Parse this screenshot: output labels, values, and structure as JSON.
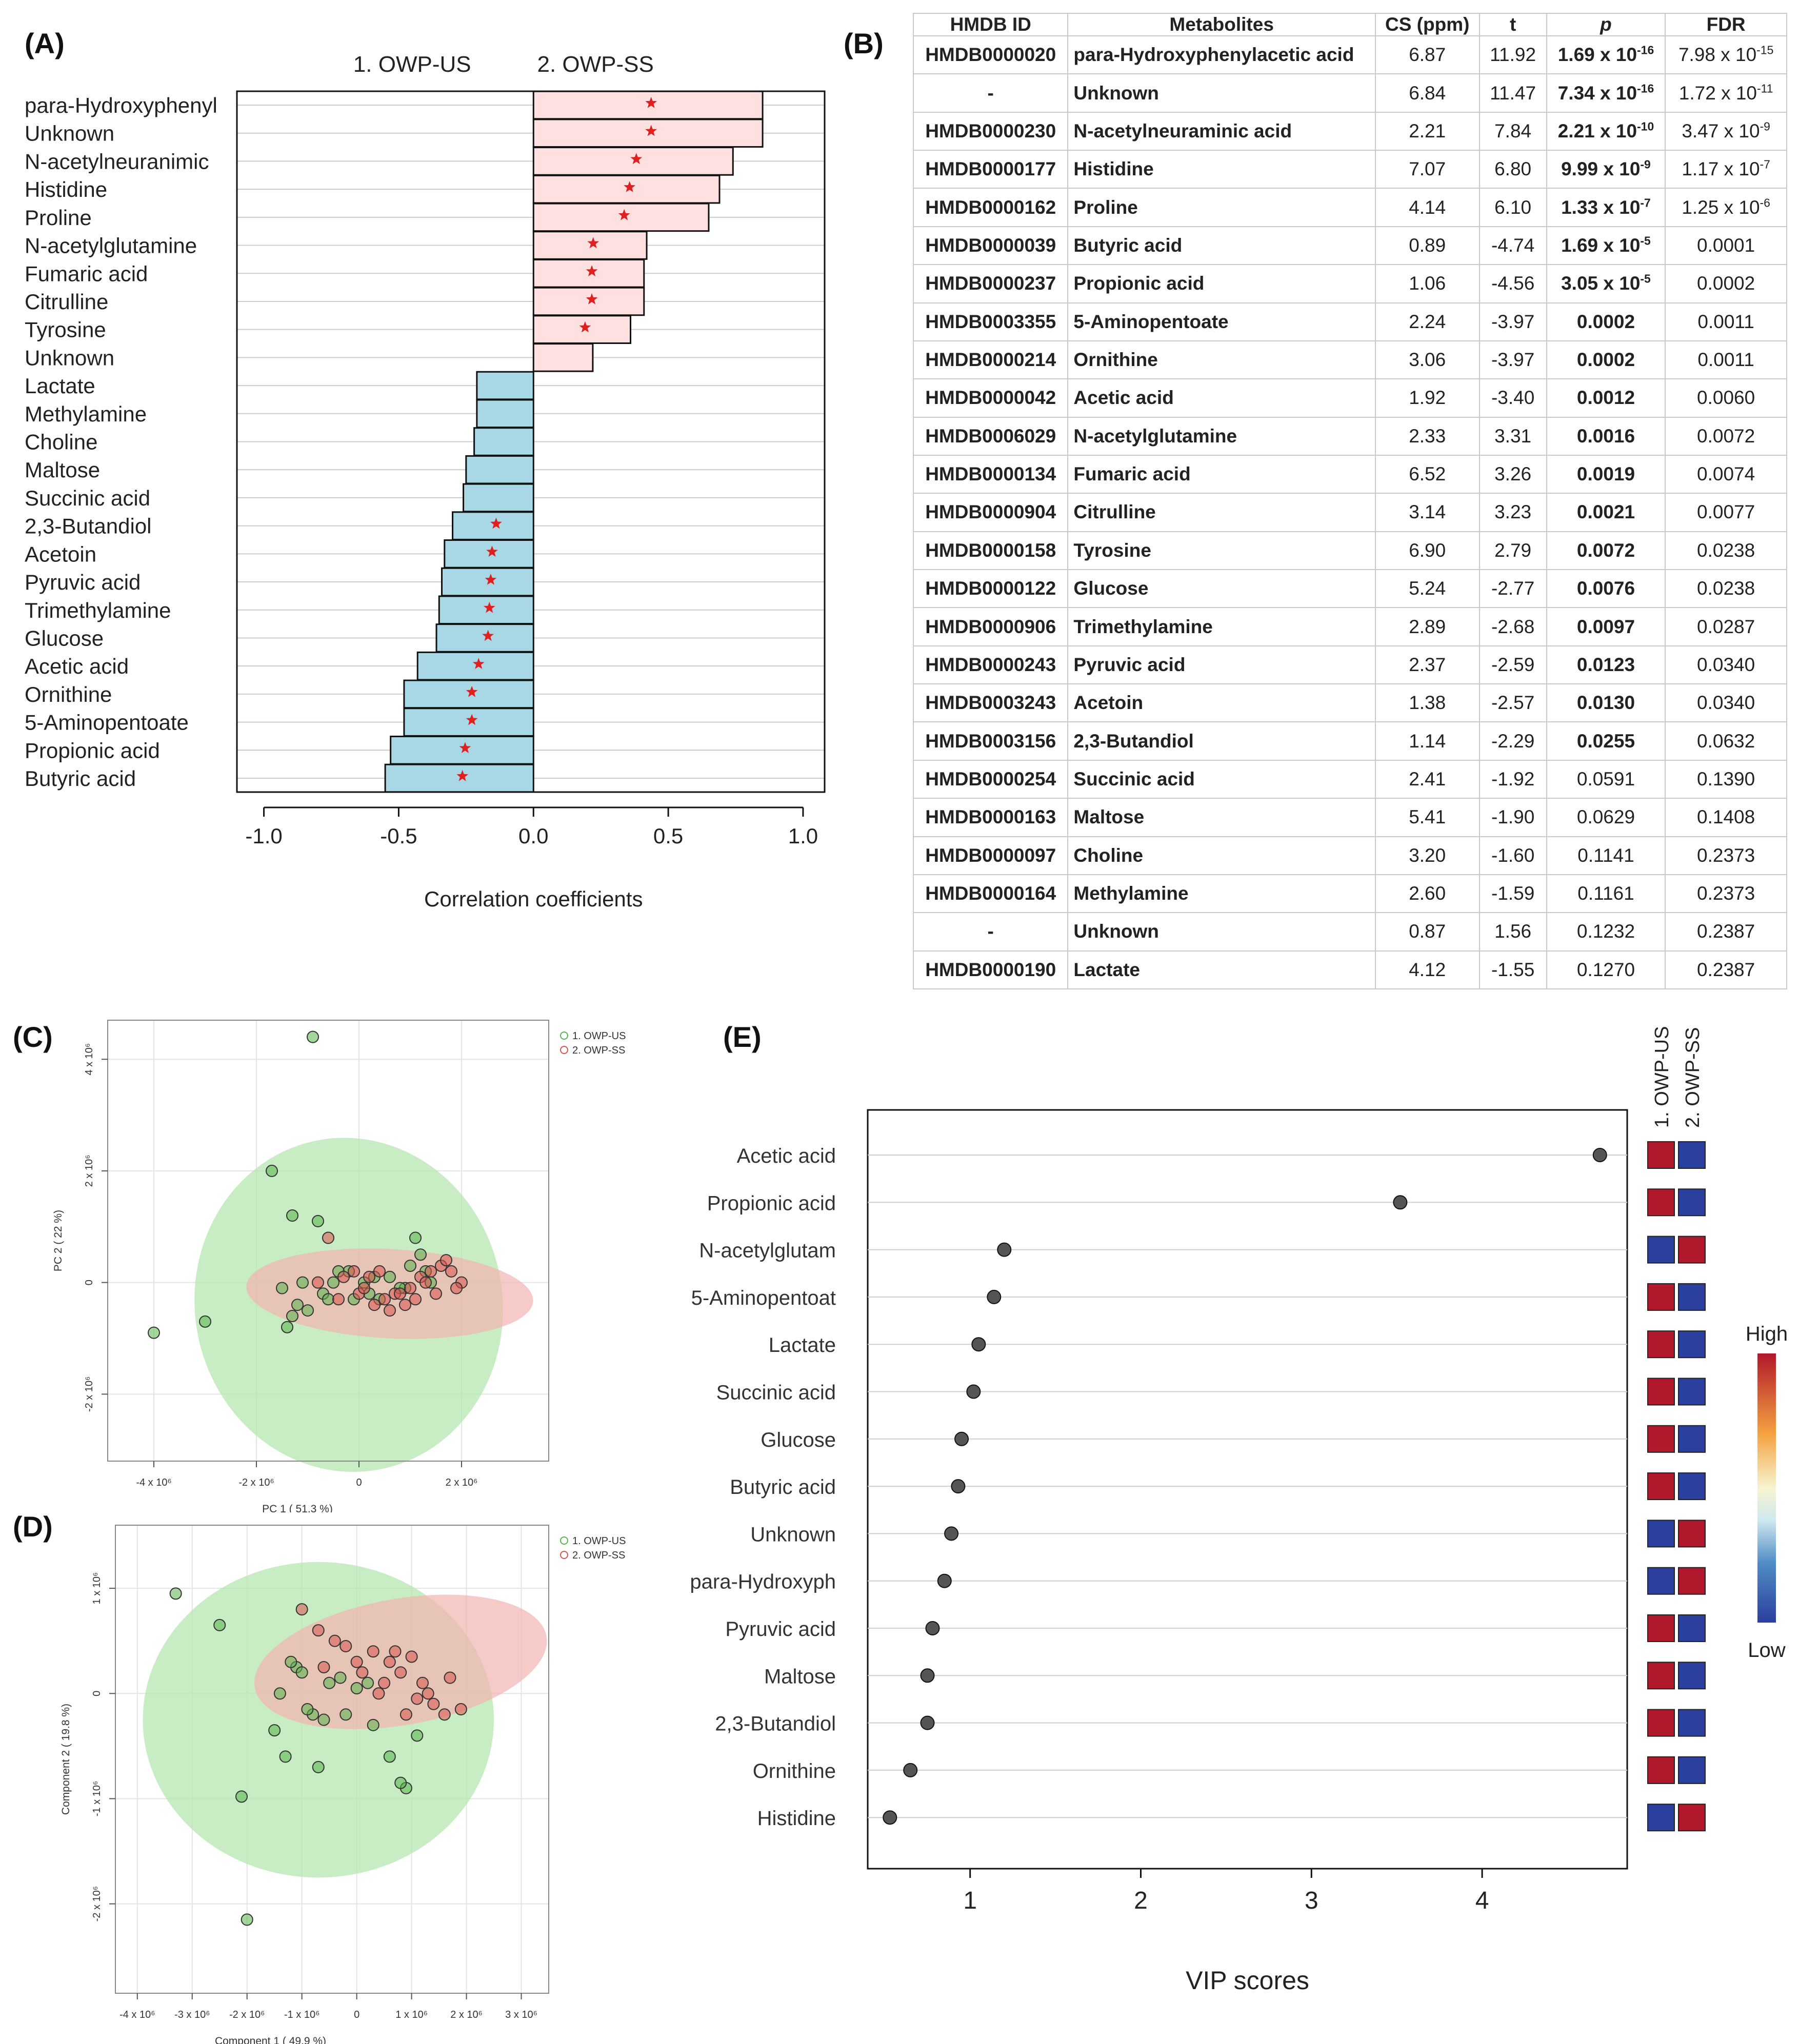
{
  "panel_labels": {
    "a": "(A)",
    "b": "(B)",
    "c": "(C)",
    "d": "(D)",
    "e": "(E)"
  },
  "colors": {
    "positive_bar": "#fde0df",
    "negative_bar": "#a8d8e6",
    "star": "#e02020",
    "us_group": "#55b548",
    "ss_group": "#d9534f",
    "us_ellipse": "#b6e6b0",
    "ss_ellipse": "#f2b3b0",
    "heat_high": "#b2182b",
    "heat_low": "#2b3f9e",
    "vip_dot": "#555555"
  },
  "chart_data": [
    {
      "id": "A",
      "type": "bar",
      "orientation": "horizontal",
      "group_labels": [
        "1. OWP-US",
        "2. OWP-SS"
      ],
      "categories": [
        "para-Hydroxyphenyl",
        "Unknown",
        "N-acetylneuranimic",
        "Histidine",
        "Proline",
        "N-acetylglutamine",
        "Fumaric acid",
        "Citrulline",
        "Tyrosine",
        "Unknown",
        "Lactate",
        "Methylamine",
        "Choline",
        "Maltose",
        "Succinic acid",
        "2,3-Butandiol",
        "Acetoin",
        "Pyruvic acid",
        "Trimethylamine",
        "Glucose",
        "Acetic acid",
        "Ornithine",
        "5-Aminopentoate",
        "Propionic acid",
        "Butyric acid"
      ],
      "values": [
        0.85,
        0.85,
        0.74,
        0.69,
        0.65,
        0.42,
        0.41,
        0.41,
        0.36,
        0.22,
        -0.21,
        -0.21,
        -0.22,
        -0.25,
        -0.26,
        -0.3,
        -0.33,
        -0.34,
        -0.35,
        -0.36,
        -0.43,
        -0.48,
        -0.48,
        -0.53,
        -0.55
      ],
      "significant": [
        true,
        true,
        true,
        true,
        true,
        true,
        true,
        true,
        true,
        false,
        false,
        false,
        false,
        false,
        false,
        true,
        true,
        true,
        true,
        true,
        true,
        true,
        true,
        true,
        true
      ],
      "xlabel": "Correlation coefficients",
      "xlim": [
        -1.1,
        1.08
      ],
      "xticks": [
        -1.0,
        -0.5,
        0.0,
        0.5,
        1.0
      ],
      "xtick_labels": [
        "-1.0",
        "-0.5",
        "0.0",
        "0.5",
        "1.0"
      ],
      "grid": true
    },
    {
      "id": "B",
      "type": "table",
      "columns": [
        "HMDB ID",
        "Metabolites",
        "CS (ppm)",
        "t",
        "p",
        "FDR"
      ],
      "rows": [
        {
          "id": "HMDB0000020",
          "name": "para-Hydroxyphenylacetic acid",
          "cs": "6.87",
          "t": "11.92",
          "p": "1.69 x 10",
          "p_exp": "-16",
          "fdr": "7.98 x 10",
          "fdr_exp": "-15",
          "bold": true
        },
        {
          "id": "-",
          "name": "Unknown",
          "cs": "6.84",
          "t": "11.47",
          "p": "7.34 x 10",
          "p_exp": "-16",
          "fdr": "1.72 x 10",
          "fdr_exp": "-11",
          "bold": true
        },
        {
          "id": "HMDB0000230",
          "name": "N-acetylneuraminic acid",
          "cs": "2.21",
          "t": "7.84",
          "p": "2.21 x 10",
          "p_exp": "-10",
          "fdr": "3.47 x 10",
          "fdr_exp": "-9",
          "bold": true
        },
        {
          "id": "HMDB0000177",
          "name": "Histidine",
          "cs": "7.07",
          "t": "6.80",
          "p": "9.99 x 10",
          "p_exp": "-9",
          "fdr": "1.17 x 10",
          "fdr_exp": "-7",
          "bold": true
        },
        {
          "id": "HMDB0000162",
          "name": "Proline",
          "cs": "4.14",
          "t": "6.10",
          "p": "1.33 x 10",
          "p_exp": "-7",
          "fdr": "1.25 x 10",
          "fdr_exp": "-6",
          "bold": true
        },
        {
          "id": "HMDB0000039",
          "name": "Butyric acid",
          "cs": "0.89",
          "t": "-4.74",
          "p": "1.69 x 10",
          "p_exp": "-5",
          "fdr": "0.0001",
          "fdr_exp": "",
          "bold": true
        },
        {
          "id": "HMDB0000237",
          "name": "Propionic acid",
          "cs": "1.06",
          "t": "-4.56",
          "p": "3.05 x 10",
          "p_exp": "-5",
          "fdr": "0.0002",
          "fdr_exp": "",
          "bold": true
        },
        {
          "id": "HMDB0003355",
          "name": "5-Aminopentoate",
          "cs": "2.24",
          "t": "-3.97",
          "p": "0.0002",
          "p_exp": "",
          "fdr": "0.0011",
          "fdr_exp": "",
          "bold": true
        },
        {
          "id": "HMDB0000214",
          "name": "Ornithine",
          "cs": "3.06",
          "t": "-3.97",
          "p": "0.0002",
          "p_exp": "",
          "fdr": "0.0011",
          "fdr_exp": "",
          "bold": true
        },
        {
          "id": "HMDB0000042",
          "name": "Acetic acid",
          "cs": "1.92",
          "t": "-3.40",
          "p": "0.0012",
          "p_exp": "",
          "fdr": "0.0060",
          "fdr_exp": "",
          "bold": true
        },
        {
          "id": "HMDB0006029",
          "name": "N-acetylglutamine",
          "cs": "2.33",
          "t": "3.31",
          "p": "0.0016",
          "p_exp": "",
          "fdr": "0.0072",
          "fdr_exp": "",
          "bold": true
        },
        {
          "id": "HMDB0000134",
          "name": "Fumaric acid",
          "cs": "6.52",
          "t": "3.26",
          "p": "0.0019",
          "p_exp": "",
          "fdr": "0.0074",
          "fdr_exp": "",
          "bold": true
        },
        {
          "id": "HMDB0000904",
          "name": "Citrulline",
          "cs": "3.14",
          "t": "3.23",
          "p": "0.0021",
          "p_exp": "",
          "fdr": "0.0077",
          "fdr_exp": "",
          "bold": true
        },
        {
          "id": "HMDB0000158",
          "name": "Tyrosine",
          "cs": "6.90",
          "t": "2.79",
          "p": "0.0072",
          "p_exp": "",
          "fdr": "0.0238",
          "fdr_exp": "",
          "bold": true
        },
        {
          "id": "HMDB0000122",
          "name": "Glucose",
          "cs": "5.24",
          "t": "-2.77",
          "p": "0.0076",
          "p_exp": "",
          "fdr": "0.0238",
          "fdr_exp": "",
          "bold": true
        },
        {
          "id": "HMDB0000906",
          "name": "Trimethylamine",
          "cs": "2.89",
          "t": "-2.68",
          "p": "0.0097",
          "p_exp": "",
          "fdr": "0.0287",
          "fdr_exp": "",
          "bold": true
        },
        {
          "id": "HMDB0000243",
          "name": "Pyruvic acid",
          "cs": "2.37",
          "t": "-2.59",
          "p": "0.0123",
          "p_exp": "",
          "fdr": "0.0340",
          "fdr_exp": "",
          "bold": true
        },
        {
          "id": "HMDB0003243",
          "name": "Acetoin",
          "cs": "1.38",
          "t": "-2.57",
          "p": "0.0130",
          "p_exp": "",
          "fdr": "0.0340",
          "fdr_exp": "",
          "bold": true
        },
        {
          "id": "HMDB0003156",
          "name": "2,3-Butandiol",
          "cs": "1.14",
          "t": "-2.29",
          "p": "0.0255",
          "p_exp": "",
          "fdr": "0.0632",
          "fdr_exp": "",
          "bold": true
        },
        {
          "id": "HMDB0000254",
          "name": "Succinic acid",
          "cs": "2.41",
          "t": "-1.92",
          "p": "0.0591",
          "p_exp": "",
          "fdr": "0.1390",
          "fdr_exp": "",
          "bold": false
        },
        {
          "id": "HMDB0000163",
          "name": "Maltose",
          "cs": "5.41",
          "t": "-1.90",
          "p": "0.0629",
          "p_exp": "",
          "fdr": "0.1408",
          "fdr_exp": "",
          "bold": false
        },
        {
          "id": "HMDB0000097",
          "name": "Choline",
          "cs": "3.20",
          "t": "-1.60",
          "p": "0.1141",
          "p_exp": "",
          "fdr": "0.2373",
          "fdr_exp": "",
          "bold": false
        },
        {
          "id": "HMDB0000164",
          "name": "Methylamine",
          "cs": "2.60",
          "t": "-1.59",
          "p": "0.1161",
          "p_exp": "",
          "fdr": "0.2373",
          "fdr_exp": "",
          "bold": false
        },
        {
          "id": "-",
          "name": "Unknown",
          "cs": "0.87",
          "t": "1.56",
          "p": "0.1232",
          "p_exp": "",
          "fdr": "0.2387",
          "fdr_exp": "",
          "bold": false
        },
        {
          "id": "HMDB0000190",
          "name": "Lactate",
          "cs": "4.12",
          "t": "-1.55",
          "p": "0.1270",
          "p_exp": "",
          "fdr": "0.2387",
          "fdr_exp": "",
          "bold": false
        }
      ]
    },
    {
      "id": "C",
      "type": "scatter",
      "xlabel": "PC 1 ( 51.3 %)",
      "ylabel": "PC 2 ( 22 %)",
      "xlim": [
        -4.9,
        3.7
      ],
      "ylim": [
        -3.2,
        4.7
      ],
      "xticks": [
        -4,
        -2,
        0,
        2
      ],
      "xtick_labels": [
        "-4 x 10⁶",
        "-2 x 10⁶",
        "0",
        "2 x 10⁶"
      ],
      "yticks": [
        -2,
        0,
        2,
        4
      ],
      "ytick_labels": [
        "-2 x 10⁶",
        "0",
        "2 x 10⁶",
        "4 x 10⁶"
      ],
      "axis_scale_note": "axis values in units of 10^6",
      "legend": [
        "1. OWP-US",
        "2. OWP-SS"
      ],
      "legend_position": "top-right",
      "ellipses": [
        {
          "group": "1. OWP-US",
          "cx": -0.2,
          "cy": -0.4,
          "rx": 3.0,
          "ry": 3.0,
          "angle": -10
        },
        {
          "group": "2. OWP-SS",
          "cx": 0.6,
          "cy": -0.2,
          "rx": 2.8,
          "ry": 0.8,
          "angle": 3
        }
      ],
      "series": [
        {
          "name": "1. OWP-US",
          "x": [
            -0.9,
            -1.7,
            -1.3,
            -0.8,
            -3.0,
            -4.0,
            -1.5,
            -1.4,
            -1.3,
            -1.2,
            -1.0,
            -0.7,
            -0.5,
            -0.2,
            -0.1,
            0.2,
            0.4,
            0.6,
            0.9,
            1.0,
            1.1,
            1.2,
            1.3,
            1.4,
            0.1,
            -0.4,
            0.3,
            -1.1,
            -0.6,
            0.8
          ],
          "y": [
            4.4,
            2.0,
            1.2,
            1.1,
            -0.7,
            -0.9,
            -0.1,
            -0.8,
            -0.6,
            -0.4,
            -0.5,
            -0.2,
            0.0,
            0.2,
            -0.3,
            -0.2,
            -0.3,
            0.1,
            -0.1,
            0.3,
            0.8,
            0.5,
            0.2,
            0.0,
            0.0,
            0.2,
            0.1,
            0.0,
            -0.3,
            -0.1
          ]
        },
        {
          "name": "2. OWP-SS",
          "x": [
            -0.6,
            -0.3,
            0.0,
            0.3,
            0.5,
            0.7,
            1.0,
            1.2,
            1.4,
            1.6,
            1.8,
            2.0,
            1.1,
            0.9,
            0.2,
            -0.1,
            0.6,
            1.5,
            0.4,
            -0.8,
            1.7,
            0.8,
            1.3,
            1.9,
            -0.4,
            0.1
          ],
          "y": [
            0.8,
            0.1,
            -0.2,
            -0.4,
            -0.3,
            -0.2,
            -0.1,
            0.1,
            0.2,
            0.3,
            0.2,
            0.0,
            -0.3,
            -0.4,
            0.1,
            0.2,
            -0.5,
            -0.2,
            0.2,
            0.0,
            0.4,
            -0.2,
            0.0,
            -0.1,
            -0.3,
            -0.1
          ]
        }
      ]
    },
    {
      "id": "D",
      "type": "scatter",
      "xlabel": "Component 1 ( 49.9 %)",
      "ylabel": "Component 2 ( 19.8 %)",
      "xlim": [
        -4.4,
        3.5
      ],
      "ylim": [
        -2.85,
        1.6
      ],
      "xticks": [
        -4,
        -3,
        -2,
        -1,
        0,
        1,
        2,
        3
      ],
      "xtick_labels": [
        "-4 x 10⁶",
        "-3 x 10⁶",
        "-2 x 10⁶",
        "-1 x 10⁶",
        "0",
        "1 x 10⁶",
        "2 x 10⁶",
        "3 x 10⁶"
      ],
      "yticks": [
        -2,
        -1,
        0,
        1
      ],
      "ytick_labels": [
        "-2 x 10⁶",
        "-1 x 10⁶",
        "0",
        "1 x 10⁶"
      ],
      "axis_scale_note": "axis values in units of 10^6",
      "legend": [
        "1. OWP-US",
        "2. OWP-SS"
      ],
      "legend_position": "top-right",
      "ellipses": [
        {
          "group": "1. OWP-US",
          "cx": -0.7,
          "cy": -0.25,
          "rx": 3.2,
          "ry": 1.5,
          "angle": 0
        },
        {
          "group": "2. OWP-SS",
          "cx": 0.8,
          "cy": 0.3,
          "rx": 2.7,
          "ry": 0.6,
          "angle": -10
        }
      ],
      "series": [
        {
          "name": "1. OWP-US",
          "x": [
            -3.3,
            -2.5,
            -2.1,
            -2.0,
            -1.4,
            -1.1,
            -1.3,
            -1.0,
            -0.8,
            -0.5,
            -0.2,
            0.0,
            0.3,
            0.6,
            0.9,
            1.1,
            -1.5,
            -0.7,
            -0.3,
            0.8,
            -1.2,
            -0.9,
            0.2,
            -0.6
          ],
          "y": [
            0.95,
            0.65,
            -0.98,
            -2.15,
            0.0,
            0.25,
            -0.6,
            0.2,
            -0.2,
            0.1,
            -0.2,
            0.05,
            -0.3,
            -0.6,
            -0.9,
            -0.4,
            -0.35,
            -0.7,
            0.15,
            -0.85,
            0.3,
            -0.15,
            0.1,
            -0.25
          ]
        },
        {
          "name": "2. OWP-SS",
          "x": [
            -1.0,
            -0.7,
            -0.4,
            0.0,
            0.3,
            0.6,
            0.8,
            1.0,
            1.2,
            1.4,
            1.6,
            1.9,
            0.5,
            0.9,
            1.3,
            -0.2,
            0.1,
            1.7,
            0.7,
            -0.6,
            1.1,
            0.4
          ],
          "y": [
            0.8,
            0.6,
            0.5,
            0.3,
            0.4,
            0.3,
            0.2,
            0.35,
            0.1,
            -0.1,
            -0.2,
            -0.15,
            0.1,
            -0.2,
            0.0,
            0.45,
            0.2,
            0.15,
            0.4,
            0.25,
            -0.05,
            0.0
          ]
        }
      ]
    },
    {
      "id": "E",
      "type": "scatter",
      "subtype": "dot-plot",
      "xlabel": "VIP scores",
      "xlim": [
        0.4,
        4.85
      ],
      "xticks": [
        1,
        2,
        3,
        4
      ],
      "xtick_labels": [
        "1",
        "2",
        "3",
        "4"
      ],
      "categories": [
        "Acetic acid",
        "Propionic acid",
        "N-acetylglutam",
        "5-Aminopentoat",
        "Lactate",
        "Succinic acid",
        "Glucose",
        "Butyric acid",
        "Unknown",
        "para-Hydroxyph",
        "Pyruvic acid",
        "Maltose",
        "2,3-Butandiol",
        "Ornithine",
        "Histidine"
      ],
      "values": [
        4.69,
        3.52,
        1.2,
        1.14,
        1.05,
        1.02,
        0.95,
        0.93,
        0.89,
        0.85,
        0.78,
        0.75,
        0.75,
        0.65,
        0.53
      ],
      "heatmap_columns": [
        "1. OWP-US",
        "2. OWP-SS"
      ],
      "heatmap": [
        [
          "high",
          "low"
        ],
        [
          "high",
          "low"
        ],
        [
          "low",
          "high"
        ],
        [
          "high",
          "low"
        ],
        [
          "high",
          "low"
        ],
        [
          "high",
          "low"
        ],
        [
          "high",
          "low"
        ],
        [
          "high",
          "low"
        ],
        [
          "low",
          "high"
        ],
        [
          "low",
          "high"
        ],
        [
          "high",
          "low"
        ],
        [
          "high",
          "low"
        ],
        [
          "high",
          "low"
        ],
        [
          "high",
          "low"
        ],
        [
          "low",
          "high"
        ]
      ],
      "colorbar": {
        "high_label": "High",
        "low_label": "Low"
      }
    }
  ]
}
